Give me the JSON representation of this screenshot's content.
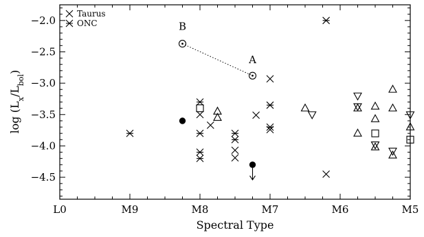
{
  "chart_data": {
    "type": "scatter",
    "title": "",
    "xlabel": "Spectral Type",
    "ylabel_main": "log (L",
    "ylabel_sub1": "x",
    "ylabel_mid": "/L",
    "ylabel_sub2": "bol",
    "ylabel_end": ")",
    "x_reversed": true,
    "xlim": [
      5,
      10
    ],
    "ylim": [
      -4.85,
      -1.75
    ],
    "x_ticks": [
      {
        "v": 10,
        "label": "L0"
      },
      {
        "v": 9,
        "label": "M9"
      },
      {
        "v": 8,
        "label": "M8"
      },
      {
        "v": 7,
        "label": "M7"
      },
      {
        "v": 6,
        "label": "M6"
      },
      {
        "v": 5,
        "label": "M5"
      }
    ],
    "y_ticks": [
      {
        "v": -2.0,
        "label": "−2.0"
      },
      {
        "v": -2.5,
        "label": "−2.5"
      },
      {
        "v": -3.0,
        "label": "−3.0"
      },
      {
        "v": -3.5,
        "label": "−3.5"
      },
      {
        "v": -4.0,
        "label": "−4.0"
      },
      {
        "v": -4.5,
        "label": "−4.5"
      }
    ],
    "legend": {
      "placement": "top-left",
      "entries": [
        {
          "marker": "x",
          "label": "Taurus"
        },
        {
          "marker": "asterisk",
          "label": "ONC"
        }
      ]
    },
    "series": [
      {
        "name": "Taurus",
        "marker": "x",
        "points": [
          [
            8,
            -3.5
          ],
          [
            7.85,
            -3.67
          ],
          [
            7.5,
            -4.07
          ],
          [
            7.5,
            -4.19
          ],
          [
            7.2,
            -3.51
          ],
          [
            7,
            -2.93
          ],
          [
            7,
            -3.74
          ],
          [
            6.2,
            -4.45
          ]
        ]
      },
      {
        "name": "ONC",
        "marker": "asterisk",
        "points": [
          [
            9,
            -3.8
          ],
          [
            8,
            -3.3
          ],
          [
            8,
            -3.8
          ],
          [
            8,
            -4.1
          ],
          [
            8,
            -4.2
          ],
          [
            7.5,
            -3.8
          ],
          [
            7.5,
            -3.9
          ],
          [
            7,
            -3.35
          ],
          [
            7,
            -3.7
          ],
          [
            6.2,
            -2.0
          ]
        ]
      },
      {
        "marker": "triangle-up",
        "points": [
          [
            7.75,
            -3.45
          ],
          [
            7.75,
            -3.55
          ],
          [
            6.5,
            -3.4
          ],
          [
            5.75,
            -3.4
          ],
          [
            5.75,
            -3.8
          ],
          [
            5.5,
            -3.37
          ],
          [
            5.5,
            -3.57
          ],
          [
            5.25,
            -3.1
          ],
          [
            5.25,
            -3.4
          ],
          [
            5,
            -3.7
          ],
          [
            5.5,
            -4.02
          ],
          [
            5.25,
            -4.15
          ]
        ]
      },
      {
        "marker": "triangle-down",
        "points": [
          [
            6.4,
            -3.5
          ],
          [
            5.75,
            -3.2
          ],
          [
            5.75,
            -3.37
          ],
          [
            5.5,
            -3.98
          ],
          [
            5.25,
            -4.08
          ],
          [
            5,
            -3.5
          ]
        ]
      },
      {
        "marker": "square",
        "points": [
          [
            8,
            -3.4
          ],
          [
            5.5,
            -3.8
          ],
          [
            5,
            -3.9
          ]
        ]
      },
      {
        "marker": "filled-circle",
        "points": [
          [
            8.25,
            -3.6
          ]
        ]
      },
      {
        "marker": "filled-circle-upper-limit",
        "points": [
          [
            7.25,
            -4.3
          ]
        ]
      },
      {
        "marker": "circle-dot",
        "points": [
          [
            8.25,
            -2.37
          ],
          [
            7.25,
            -2.88
          ]
        ]
      }
    ],
    "connector": {
      "style": "dotted",
      "from": [
        8.25,
        -2.37
      ],
      "to": [
        7.25,
        -2.88
      ]
    },
    "annotations": [
      {
        "text": "B",
        "x": 8.25,
        "y": -2.15
      },
      {
        "text": "A",
        "x": 7.25,
        "y": -2.68
      }
    ]
  }
}
